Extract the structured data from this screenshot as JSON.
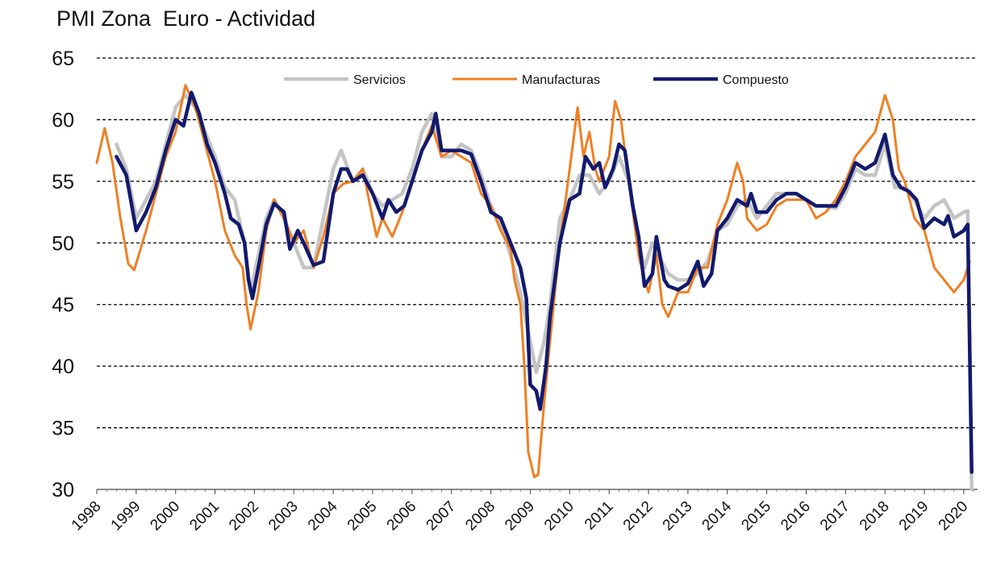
{
  "chart_data": {
    "type": "line",
    "title": "PMI Zona  Euro - Actividad",
    "xlabel": "",
    "ylabel": "",
    "ylim": [
      30,
      65
    ],
    "yticks": [
      30,
      35,
      40,
      45,
      50,
      55,
      60,
      65
    ],
    "xlim": [
      1998.0,
      2020.35
    ],
    "xticks": [
      "1998",
      "1999",
      "2000",
      "2001",
      "2002",
      "2003",
      "2004",
      "2005",
      "2006",
      "2007",
      "2008",
      "2009",
      "2010",
      "2011",
      "2012",
      "2013",
      "2014",
      "2015",
      "2016",
      "2017",
      "2018",
      "2019",
      "2020"
    ],
    "grid": "horizontal-dashed",
    "legend": "top-center",
    "colors": {
      "Servicios": "#c4c4c4",
      "Manufacturas": "#f07f22",
      "Compuesto": "#121a6e"
    },
    "series": [
      {
        "name": "Servicios",
        "points": [
          [
            1998.5,
            58
          ],
          [
            1998.75,
            56
          ],
          [
            1999.0,
            52
          ],
          [
            1999.25,
            53.5
          ],
          [
            1999.5,
            55
          ],
          [
            1999.75,
            58
          ],
          [
            2000.0,
            61
          ],
          [
            2000.25,
            62
          ],
          [
            2000.5,
            61
          ],
          [
            2000.75,
            59
          ],
          [
            2001.0,
            57
          ],
          [
            2001.25,
            54.5
          ],
          [
            2001.5,
            53.5
          ],
          [
            2001.75,
            50
          ],
          [
            2001.9,
            46
          ],
          [
            2002.1,
            49
          ],
          [
            2002.3,
            52
          ],
          [
            2002.5,
            53.5
          ],
          [
            2002.75,
            52
          ],
          [
            2003.0,
            50
          ],
          [
            2003.25,
            48
          ],
          [
            2003.5,
            48
          ],
          [
            2003.75,
            52
          ],
          [
            2004.0,
            56
          ],
          [
            2004.2,
            57.5
          ],
          [
            2004.5,
            55
          ],
          [
            2004.75,
            56
          ],
          [
            2005.0,
            54
          ],
          [
            2005.25,
            53
          ],
          [
            2005.5,
            53.5
          ],
          [
            2005.75,
            54
          ],
          [
            2006.0,
            56
          ],
          [
            2006.25,
            59
          ],
          [
            2006.5,
            60.5
          ],
          [
            2006.75,
            57
          ],
          [
            2007.0,
            57
          ],
          [
            2007.25,
            58
          ],
          [
            2007.5,
            57.5
          ],
          [
            2007.75,
            55.5
          ],
          [
            2008.0,
            53
          ],
          [
            2008.25,
            51.5
          ],
          [
            2008.5,
            49
          ],
          [
            2008.75,
            46
          ],
          [
            2009.0,
            42
          ],
          [
            2009.15,
            39.5
          ],
          [
            2009.35,
            42
          ],
          [
            2009.5,
            45
          ],
          [
            2009.75,
            52
          ],
          [
            2010.0,
            53.5
          ],
          [
            2010.25,
            55.5
          ],
          [
            2010.5,
            55.5
          ],
          [
            2010.75,
            54
          ],
          [
            2011.0,
            55
          ],
          [
            2011.25,
            57
          ],
          [
            2011.5,
            55
          ],
          [
            2011.75,
            50
          ],
          [
            2011.9,
            48
          ],
          [
            2012.1,
            50
          ],
          [
            2012.25,
            49
          ],
          [
            2012.5,
            47.5
          ],
          [
            2012.75,
            47
          ],
          [
            2013.0,
            47
          ],
          [
            2013.25,
            47.5
          ],
          [
            2013.5,
            48.5
          ],
          [
            2013.75,
            51
          ],
          [
            2014.0,
            51.5
          ],
          [
            2014.25,
            53
          ],
          [
            2014.5,
            53.5
          ],
          [
            2014.75,
            52
          ],
          [
            2015.0,
            53
          ],
          [
            2015.25,
            54
          ],
          [
            2015.5,
            54
          ],
          [
            2015.75,
            54
          ],
          [
            2016.0,
            53.5
          ],
          [
            2016.25,
            53
          ],
          [
            2016.5,
            53
          ],
          [
            2016.75,
            52.8
          ],
          [
            2017.0,
            54
          ],
          [
            2017.25,
            56
          ],
          [
            2017.5,
            55.5
          ],
          [
            2017.75,
            55.5
          ],
          [
            2018.0,
            58
          ],
          [
            2018.25,
            54.5
          ],
          [
            2018.5,
            54.5
          ],
          [
            2018.75,
            53.5
          ],
          [
            2019.0,
            52
          ],
          [
            2019.25,
            53
          ],
          [
            2019.5,
            53.5
          ],
          [
            2019.75,
            52
          ],
          [
            2020.0,
            52.5
          ],
          [
            2020.1,
            52.6
          ],
          [
            2020.2,
            30
          ]
        ]
      },
      {
        "name": "Manufacturas",
        "points": [
          [
            1998.0,
            56.5
          ],
          [
            1998.2,
            59.3
          ],
          [
            1998.4,
            56.5
          ],
          [
            1998.6,
            52
          ],
          [
            1998.8,
            48.3
          ],
          [
            1998.95,
            47.8
          ],
          [
            1999.25,
            51
          ],
          [
            1999.5,
            54
          ],
          [
            1999.75,
            57
          ],
          [
            2000.0,
            59
          ],
          [
            2000.25,
            62.8
          ],
          [
            2000.5,
            61
          ],
          [
            2000.75,
            58
          ],
          [
            2001.0,
            55
          ],
          [
            2001.25,
            51
          ],
          [
            2001.5,
            49
          ],
          [
            2001.7,
            48
          ],
          [
            2001.8,
            45
          ],
          [
            2001.9,
            43
          ],
          [
            2002.1,
            46
          ],
          [
            2002.3,
            51
          ],
          [
            2002.5,
            53.5
          ],
          [
            2002.75,
            52
          ],
          [
            2003.0,
            50
          ],
          [
            2003.25,
            51
          ],
          [
            2003.5,
            48
          ],
          [
            2003.75,
            50.5
          ],
          [
            2004.0,
            54
          ],
          [
            2004.25,
            54.8
          ],
          [
            2004.5,
            55
          ],
          [
            2004.75,
            56
          ],
          [
            2005.0,
            52
          ],
          [
            2005.1,
            50.5
          ],
          [
            2005.25,
            52
          ],
          [
            2005.5,
            50.5
          ],
          [
            2005.75,
            52.5
          ],
          [
            2006.0,
            55
          ],
          [
            2006.25,
            57.5
          ],
          [
            2006.5,
            59.5
          ],
          [
            2006.75,
            57
          ],
          [
            2007.0,
            57.5
          ],
          [
            2007.25,
            57
          ],
          [
            2007.5,
            56.5
          ],
          [
            2007.75,
            54
          ],
          [
            2008.0,
            53
          ],
          [
            2008.25,
            51
          ],
          [
            2008.5,
            49.5
          ],
          [
            2008.6,
            47
          ],
          [
            2008.75,
            45
          ],
          [
            2008.85,
            40
          ],
          [
            2008.95,
            33
          ],
          [
            2009.1,
            31
          ],
          [
            2009.2,
            31.2
          ],
          [
            2009.35,
            37
          ],
          [
            2009.5,
            42
          ],
          [
            2009.75,
            50
          ],
          [
            2010.0,
            56
          ],
          [
            2010.2,
            61
          ],
          [
            2010.35,
            57
          ],
          [
            2010.5,
            59
          ],
          [
            2010.65,
            56
          ],
          [
            2010.75,
            55
          ],
          [
            2011.0,
            57
          ],
          [
            2011.15,
            61.5
          ],
          [
            2011.3,
            60
          ],
          [
            2011.5,
            55
          ],
          [
            2011.75,
            49
          ],
          [
            2011.9,
            47
          ],
          [
            2012.0,
            46
          ],
          [
            2012.2,
            49
          ],
          [
            2012.35,
            45
          ],
          [
            2012.5,
            44
          ],
          [
            2012.75,
            46
          ],
          [
            2013.0,
            46
          ],
          [
            2013.25,
            48
          ],
          [
            2013.5,
            48
          ],
          [
            2013.75,
            51.5
          ],
          [
            2014.0,
            53.5
          ],
          [
            2014.25,
            56.5
          ],
          [
            2014.4,
            55
          ],
          [
            2014.5,
            52
          ],
          [
            2014.75,
            51
          ],
          [
            2015.0,
            51.5
          ],
          [
            2015.25,
            53
          ],
          [
            2015.5,
            53.5
          ],
          [
            2015.75,
            53.5
          ],
          [
            2016.0,
            53.5
          ],
          [
            2016.25,
            52
          ],
          [
            2016.5,
            52.5
          ],
          [
            2016.75,
            53.5
          ],
          [
            2017.0,
            55
          ],
          [
            2017.25,
            57
          ],
          [
            2017.5,
            58
          ],
          [
            2017.75,
            59
          ],
          [
            2018.0,
            62
          ],
          [
            2018.2,
            60
          ],
          [
            2018.35,
            56
          ],
          [
            2018.5,
            55
          ],
          [
            2018.75,
            52
          ],
          [
            2019.0,
            51
          ],
          [
            2019.25,
            48
          ],
          [
            2019.5,
            47
          ],
          [
            2019.75,
            46
          ],
          [
            2020.0,
            47
          ],
          [
            2020.15,
            48.5
          ]
        ]
      },
      {
        "name": "Compuesto",
        "points": [
          [
            1998.5,
            57
          ],
          [
            1998.75,
            55.5
          ],
          [
            1999.0,
            51
          ],
          [
            1999.25,
            52.5
          ],
          [
            1999.5,
            54.5
          ],
          [
            1999.75,
            57.5
          ],
          [
            2000.0,
            60
          ],
          [
            2000.2,
            59.5
          ],
          [
            2000.4,
            62.2
          ],
          [
            2000.6,
            60.5
          ],
          [
            2000.8,
            58
          ],
          [
            2001.0,
            56.5
          ],
          [
            2001.25,
            54
          ],
          [
            2001.4,
            52
          ],
          [
            2001.6,
            51.5
          ],
          [
            2001.75,
            50
          ],
          [
            2001.85,
            47
          ],
          [
            2001.95,
            45.5
          ],
          [
            2002.1,
            48
          ],
          [
            2002.3,
            51.5
          ],
          [
            2002.5,
            53.2
          ],
          [
            2002.75,
            52.5
          ],
          [
            2002.9,
            49.5
          ],
          [
            2003.1,
            51
          ],
          [
            2003.25,
            50
          ],
          [
            2003.5,
            48.2
          ],
          [
            2003.75,
            48.5
          ],
          [
            2004.0,
            54
          ],
          [
            2004.2,
            56
          ],
          [
            2004.35,
            56
          ],
          [
            2004.5,
            55
          ],
          [
            2004.75,
            55.5
          ],
          [
            2005.0,
            54
          ],
          [
            2005.25,
            52
          ],
          [
            2005.4,
            53.5
          ],
          [
            2005.6,
            52.5
          ],
          [
            2005.8,
            53
          ],
          [
            2006.0,
            55
          ],
          [
            2006.25,
            57.5
          ],
          [
            2006.5,
            59
          ],
          [
            2006.6,
            60.5
          ],
          [
            2006.75,
            57.5
          ],
          [
            2007.0,
            57.5
          ],
          [
            2007.25,
            57.5
          ],
          [
            2007.5,
            57.2
          ],
          [
            2007.75,
            55
          ],
          [
            2008.0,
            52.5
          ],
          [
            2008.25,
            52
          ],
          [
            2008.5,
            50
          ],
          [
            2008.75,
            48
          ],
          [
            2008.9,
            45.5
          ],
          [
            2009.0,
            38.5
          ],
          [
            2009.15,
            38
          ],
          [
            2009.25,
            36.5
          ],
          [
            2009.4,
            40
          ],
          [
            2009.5,
            44
          ],
          [
            2009.75,
            50
          ],
          [
            2010.0,
            53.5
          ],
          [
            2010.25,
            54
          ],
          [
            2010.4,
            57
          ],
          [
            2010.6,
            56
          ],
          [
            2010.75,
            56.5
          ],
          [
            2010.9,
            54.5
          ],
          [
            2011.1,
            56
          ],
          [
            2011.25,
            58
          ],
          [
            2011.4,
            57.5
          ],
          [
            2011.6,
            53
          ],
          [
            2011.75,
            50.5
          ],
          [
            2011.9,
            46.5
          ],
          [
            2012.1,
            47.5
          ],
          [
            2012.2,
            50.5
          ],
          [
            2012.4,
            47
          ],
          [
            2012.5,
            46.5
          ],
          [
            2012.75,
            46.2
          ],
          [
            2013.0,
            46.7
          ],
          [
            2013.25,
            48.5
          ],
          [
            2013.4,
            46.5
          ],
          [
            2013.6,
            47.5
          ],
          [
            2013.75,
            51
          ],
          [
            2014.0,
            52
          ],
          [
            2014.25,
            53.5
          ],
          [
            2014.5,
            53
          ],
          [
            2014.6,
            54
          ],
          [
            2014.75,
            52.5
          ],
          [
            2015.0,
            52.5
          ],
          [
            2015.25,
            53.5
          ],
          [
            2015.5,
            54
          ],
          [
            2015.75,
            54
          ],
          [
            2016.0,
            53.5
          ],
          [
            2016.25,
            53
          ],
          [
            2016.5,
            53
          ],
          [
            2016.75,
            53
          ],
          [
            2017.0,
            54.5
          ],
          [
            2017.25,
            56.5
          ],
          [
            2017.5,
            56
          ],
          [
            2017.75,
            56.5
          ],
          [
            2018.0,
            58.8
          ],
          [
            2018.2,
            55.5
          ],
          [
            2018.4,
            54.5
          ],
          [
            2018.6,
            54.2
          ],
          [
            2018.8,
            53.5
          ],
          [
            2019.0,
            51.2
          ],
          [
            2019.25,
            52
          ],
          [
            2019.5,
            51.5
          ],
          [
            2019.6,
            52.2
          ],
          [
            2019.75,
            50.5
          ],
          [
            2020.0,
            51
          ],
          [
            2020.1,
            51.5
          ],
          [
            2020.2,
            31.4
          ]
        ]
      }
    ]
  }
}
